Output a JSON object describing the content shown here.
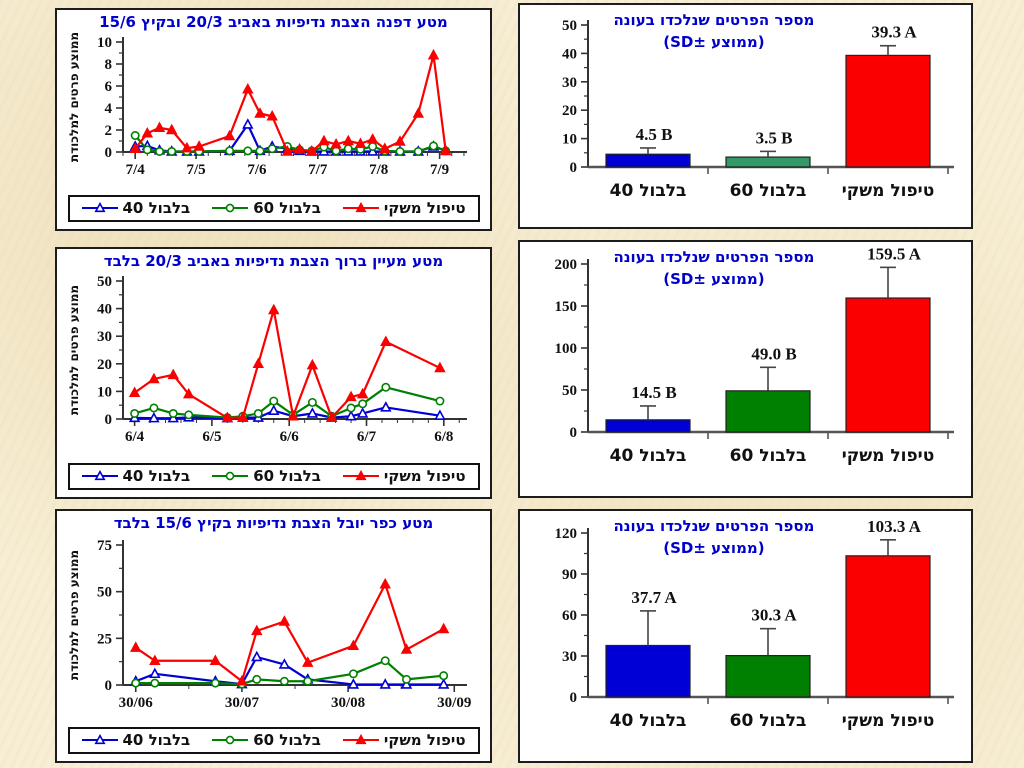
{
  "accent_colors": {
    "title_blue": "#0000cc",
    "series_blue": "#0000d6",
    "series_green": "#008000",
    "series_red": "#fb0000",
    "bar_green_seagreen": "#339966",
    "slide_background": "#f7eed5"
  },
  "chart_data": [
    {
      "type": "line",
      "title": "מטע דפנה הצבת נדיפיות באביב 20/3 ובקיץ 15/6",
      "ylabel": "ממוצע פרטים למלכודת",
      "ylim": [
        0,
        10
      ],
      "yticks": [
        0,
        2,
        4,
        6,
        8,
        10
      ],
      "xtick_labels": [
        "7/4",
        "7/5",
        "7/6",
        "7/7",
        "7/8",
        "7/9"
      ],
      "xlim": [
        -0.2,
        5.45
      ],
      "grid": false,
      "legend_position": "bottom",
      "series": [
        {
          "name": "בלבול 40",
          "color": "#0000d6",
          "marker": "triangle-open",
          "x": [
            0,
            0.2,
            0.4,
            0.6,
            0.85,
            1.05,
            1.55,
            1.85,
            2.05,
            2.25,
            2.5,
            2.7,
            2.9,
            3.1,
            3.3,
            3.5,
            3.7,
            3.9,
            4.1,
            4.35,
            4.65,
            4.9,
            5.1
          ],
          "y": [
            0.5,
            0.55,
            0.15,
            0.05,
            0.05,
            0.05,
            0.1,
            2.5,
            0.1,
            0.5,
            0.3,
            0.1,
            0.05,
            0.05,
            0.05,
            0.05,
            0.05,
            0.05,
            0.05,
            0.05,
            0.05,
            0.5,
            0.1
          ]
        },
        {
          "name": "בלבול 60",
          "color": "#008000",
          "marker": "circle-open",
          "x": [
            0,
            0.2,
            0.4,
            0.6,
            0.85,
            1.05,
            1.55,
            1.85,
            2.05,
            2.25,
            2.5,
            2.7,
            2.9,
            3.1,
            3.3,
            3.5,
            3.7,
            3.9,
            4.1,
            4.35,
            4.65,
            4.9,
            5.1
          ],
          "y": [
            1.5,
            0.2,
            0.05,
            0.05,
            0.05,
            0.05,
            0.1,
            0.1,
            0.1,
            0.3,
            0.5,
            0.2,
            0.1,
            0.45,
            0.1,
            0.3,
            0.25,
            0.5,
            0.1,
            0.05,
            0.05,
            0.55,
            0.1
          ]
        },
        {
          "name": "טיפול משקי",
          "color": "#fb0000",
          "marker": "triangle-filled",
          "x": [
            0,
            0.2,
            0.4,
            0.6,
            0.85,
            1.05,
            1.55,
            1.85,
            2.05,
            2.25,
            2.5,
            2.7,
            2.9,
            3.1,
            3.3,
            3.5,
            3.7,
            3.9,
            4.1,
            4.35,
            4.65,
            4.9,
            5.1
          ],
          "y": [
            0.3,
            1.7,
            2.2,
            2.0,
            0.35,
            0.5,
            1.45,
            5.7,
            3.5,
            3.25,
            0.05,
            0.25,
            0.05,
            1.0,
            0.7,
            1.0,
            0.75,
            1.15,
            0.3,
            0.95,
            3.5,
            8.8,
            0.1
          ]
        }
      ]
    },
    {
      "type": "bar",
      "title_line1": "מספר הפרטים שנלכדו בעונה",
      "title_line2": "(ממוצע ±SD)",
      "ylim": [
        0,
        50
      ],
      "yticks": [
        0,
        10,
        20,
        30,
        40,
        50
      ],
      "categories": [
        "בלבול 40",
        "בלבול 60",
        "טיפול משקי"
      ],
      "values": [
        4.5,
        3.5,
        39.3
      ],
      "errors_sd_up": [
        2.2,
        2.0,
        3.4
      ],
      "value_labels": [
        "4.5 B",
        "3.5 B",
        "39.3 A"
      ],
      "bar_colors": [
        "#0000d6",
        "#339966",
        "#fb0000"
      ]
    },
    {
      "type": "line",
      "title": "מטע מעיין ברוך הצבת נדיפיות באביב 20/3 בלבד",
      "ylabel": "ממוצע פרטים למלכודת",
      "ylim": [
        0,
        50
      ],
      "yticks": [
        0,
        10,
        20,
        30,
        40,
        50
      ],
      "xtick_labels": [
        "6/4",
        "6/5",
        "6/6",
        "6/7",
        "6/8"
      ],
      "xlim": [
        -0.15,
        4.3
      ],
      "grid": false,
      "legend_position": "bottom",
      "series": [
        {
          "name": "בלבול 40",
          "color": "#0000d6",
          "marker": "triangle-open",
          "x": [
            0,
            0.25,
            0.5,
            0.7,
            1.2,
            1.4,
            1.6,
            1.8,
            2.05,
            2.3,
            2.55,
            2.8,
            2.95,
            3.25,
            3.95
          ],
          "y": [
            0.4,
            0.3,
            0.3,
            0.6,
            0.3,
            0.5,
            0.5,
            3,
            1,
            2,
            0.5,
            1,
            2,
            4.2,
            1.2
          ]
        },
        {
          "name": "בלבול 60",
          "color": "#008000",
          "marker": "circle-open",
          "x": [
            0,
            0.25,
            0.5,
            0.7,
            1.2,
            1.4,
            1.6,
            1.8,
            2.05,
            2.3,
            2.55,
            2.8,
            2.95,
            3.25,
            3.95
          ],
          "y": [
            2,
            4,
            2,
            1.5,
            0.5,
            1,
            2,
            6.5,
            1.5,
            6,
            1,
            4,
            5.5,
            11.5,
            6.5
          ]
        },
        {
          "name": "טיפול משקי",
          "color": "#fb0000",
          "marker": "triangle-filled",
          "x": [
            0,
            0.25,
            0.5,
            0.7,
            1.2,
            1.4,
            1.6,
            1.8,
            2.05,
            2.3,
            2.55,
            2.8,
            2.95,
            3.25,
            3.95
          ],
          "y": [
            9.5,
            14.5,
            16,
            9,
            0.4,
            0.5,
            20,
            39.5,
            1,
            19.5,
            0.5,
            8,
            9,
            28,
            18.5
          ]
        }
      ]
    },
    {
      "type": "bar",
      "title_line1": "מספר הפרטים שנלכדו בעונה",
      "title_line2": "(ממוצע ±SD)",
      "ylim": [
        0,
        200
      ],
      "yticks": [
        0,
        50,
        100,
        150,
        200
      ],
      "categories": [
        "בלבול 40",
        "בלבול 60",
        "טיפול משקי"
      ],
      "values": [
        14.5,
        49.0,
        159.5
      ],
      "errors_sd_up": [
        16.5,
        28,
        36.5
      ],
      "value_labels": [
        "14.5 B",
        "49.0 B",
        "159.5  A"
      ],
      "bar_colors": [
        "#0000d6",
        "#008000",
        "#fb0000"
      ]
    },
    {
      "type": "line",
      "title": "מטע כפר יובל הצבת נדיפיות בקיץ 15/6 בלבד",
      "ylabel": "ממוצע פרטים למלכודת",
      "ylim": [
        0,
        75
      ],
      "yticks": [
        0,
        25,
        50,
        75
      ],
      "xtick_labels": [
        "30/06",
        "30/07",
        "30/08",
        "30/09"
      ],
      "xlim": [
        -0.12,
        3.12
      ],
      "grid": false,
      "legend_position": "bottom",
      "series": [
        {
          "name": "בלבול 40",
          "color": "#0000d6",
          "marker": "triangle-open",
          "x": [
            0,
            0.18,
            0.75,
            1.0,
            1.14,
            1.4,
            1.62,
            2.05,
            2.35,
            2.55,
            2.9
          ],
          "y": [
            2,
            6,
            2,
            0.5,
            15,
            11,
            3,
            0.3,
            0.3,
            0.3,
            0.3
          ]
        },
        {
          "name": "בלבול 60",
          "color": "#008000",
          "marker": "circle-open",
          "x": [
            0,
            0.18,
            0.75,
            1.0,
            1.14,
            1.4,
            1.62,
            2.05,
            2.35,
            2.55,
            2.9
          ],
          "y": [
            1,
            1,
            1,
            0.5,
            3,
            2,
            2,
            6,
            13,
            3,
            5
          ]
        },
        {
          "name": "טיפול משקי",
          "color": "#fb0000",
          "marker": "triangle-filled",
          "x": [
            0,
            0.18,
            0.75,
            1.0,
            1.14,
            1.4,
            1.62,
            2.05,
            2.35,
            2.55,
            2.9
          ],
          "y": [
            20,
            13,
            13,
            2,
            29,
            34,
            12,
            21,
            54,
            19,
            30
          ]
        }
      ]
    },
    {
      "type": "bar",
      "title_line1": "מספר הפרטים שנלכדו בעונה",
      "title_line2": "(ממוצע ±SD)",
      "ylim": [
        0,
        120
      ],
      "yticks": [
        0,
        30,
        60,
        90,
        120
      ],
      "categories": [
        "בלבול 40",
        "בלבול 60",
        "טיפול משקי"
      ],
      "values": [
        37.7,
        30.3,
        103.3
      ],
      "errors_sd_up": [
        25.3,
        19.7,
        11.7
      ],
      "value_labels": [
        "37.7 A",
        "30.3 A",
        "103.3 A"
      ],
      "bar_colors": [
        "#0000d6",
        "#008000",
        "#fb0000"
      ]
    }
  ]
}
